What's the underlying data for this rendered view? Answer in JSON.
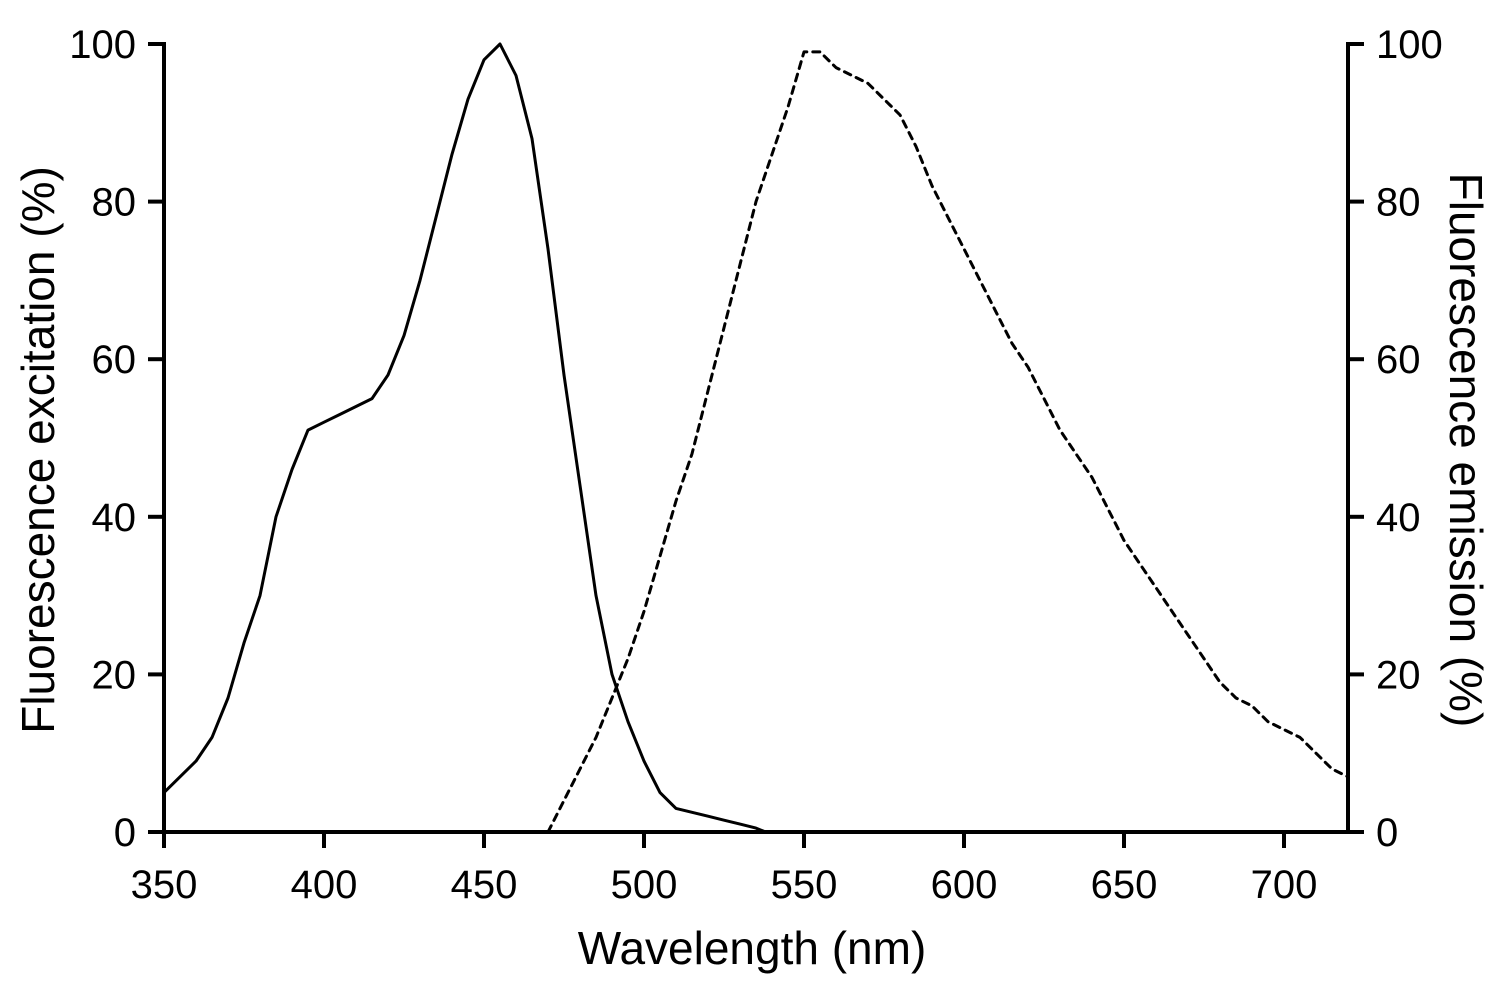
{
  "chart_data": {
    "type": "line",
    "xlabel": "Wavelength (nm)",
    "ylabel_left": "Fluorescence excitation (%)",
    "ylabel_right": "Fluorescence emission (%)",
    "xlim": [
      350,
      720
    ],
    "ylim_left": [
      0,
      100
    ],
    "ylim_right": [
      0,
      100
    ],
    "x_ticks": [
      350,
      400,
      450,
      500,
      550,
      600,
      650,
      700
    ],
    "y_ticks_left": [
      0,
      20,
      40,
      60,
      80,
      100
    ],
    "y_ticks_right": [
      0,
      20,
      40,
      60,
      80,
      100
    ],
    "grid": false,
    "series": [
      {
        "axis": "left",
        "style": "solid",
        "x": [
          350,
          355,
          360,
          365,
          370,
          375,
          380,
          385,
          390,
          395,
          400,
          405,
          410,
          415,
          420,
          425,
          430,
          435,
          440,
          445,
          450,
          455,
          460,
          465,
          470,
          475,
          480,
          485,
          490,
          495,
          500,
          505,
          510,
          515,
          520,
          525,
          530,
          535,
          538,
          540,
          720
        ],
        "y": [
          5,
          7,
          9,
          12,
          17,
          24,
          30,
          40,
          46,
          51,
          52,
          53,
          54,
          55,
          58,
          63,
          70,
          78,
          86,
          93,
          98,
          100,
          96,
          88,
          74,
          58,
          44,
          30,
          20,
          14,
          9,
          5,
          3,
          2.5,
          2,
          1.5,
          1,
          0.5,
          0,
          0,
          0
        ]
      },
      {
        "axis": "right",
        "style": "dashed",
        "x": [
          470,
          475,
          480,
          485,
          490,
          495,
          500,
          505,
          510,
          515,
          520,
          525,
          530,
          535,
          540,
          545,
          550,
          555,
          560,
          565,
          570,
          575,
          580,
          585,
          590,
          595,
          600,
          605,
          610,
          615,
          620,
          625,
          630,
          635,
          640,
          645,
          650,
          655,
          660,
          665,
          670,
          675,
          680,
          685,
          690,
          695,
          700,
          705,
          710,
          715,
          720
        ],
        "y": [
          0,
          4,
          8,
          12,
          17,
          22,
          28,
          35,
          42,
          48,
          56,
          64,
          72,
          80,
          86,
          92,
          99,
          99,
          97,
          96,
          95,
          93,
          91,
          87,
          82,
          78,
          74,
          70,
          66,
          62,
          59,
          55,
          51,
          48,
          45,
          41,
          37,
          34,
          31,
          28,
          25,
          22,
          19,
          17,
          16,
          14,
          13,
          12,
          10,
          8,
          7
        ]
      }
    ]
  }
}
